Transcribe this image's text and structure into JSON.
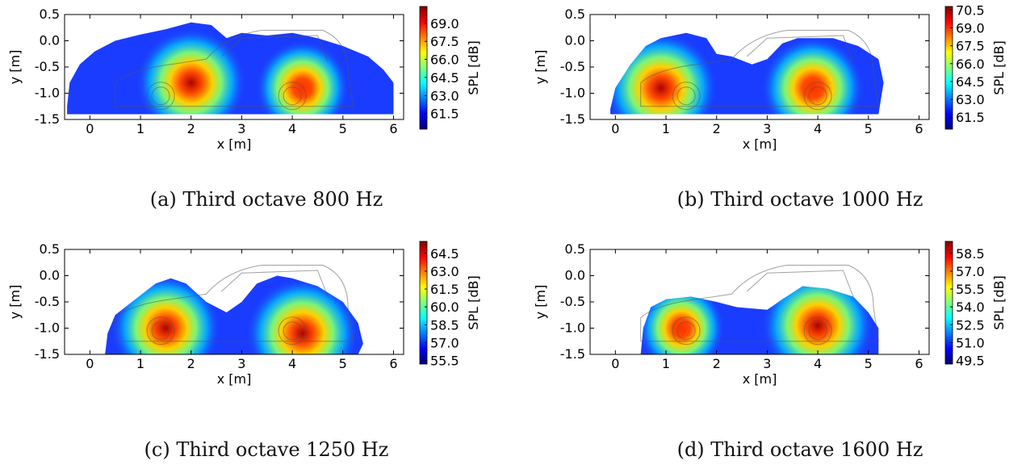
{
  "chart_data": [
    {
      "type": "heatmap",
      "caption": "(a)  Third octave 800 Hz",
      "xlabel": "x [m]",
      "ylabel": "y [m]",
      "colorbar_label": "SPL [dB]",
      "xlim": [
        -0.5,
        6.2
      ],
      "ylim": [
        -1.5,
        0.5
      ],
      "xticks": [
        "0",
        "1",
        "2",
        "3",
        "4",
        "5",
        "6"
      ],
      "yticks": [
        "0.5",
        "0.0",
        "-0.5",
        "-1.0",
        "-1.5"
      ],
      "colorbar_ticks": [
        "69.0",
        "67.5",
        "66.0",
        "64.5",
        "63.0",
        "61.5"
      ],
      "colorbar_range": [
        60.2,
        70.4
      ],
      "hotspots": [
        {
          "x": 2.0,
          "y": -0.8,
          "level": 69.5
        },
        {
          "x": 4.2,
          "y": -0.9,
          "level": 66.5
        }
      ],
      "colormap": [
        "#00007f",
        "#0000ff",
        "#007fff",
        "#00ffff",
        "#7fff7f",
        "#ffff00",
        "#ff7f00",
        "#ff0000",
        "#7f0000"
      ]
    },
    {
      "type": "heatmap",
      "caption": "(b)  Third octave 1000 Hz",
      "xlabel": "x [m]",
      "ylabel": "y [m]",
      "colorbar_label": "SPL [dB]",
      "xlim": [
        -0.5,
        6.2
      ],
      "ylim": [
        -1.5,
        0.5
      ],
      "xticks": [
        "0",
        "1",
        "2",
        "3",
        "4",
        "5",
        "6"
      ],
      "yticks": [
        "0.5",
        "0.0",
        "-0.5",
        "-1.0",
        "-1.5"
      ],
      "colorbar_ticks": [
        "70.5",
        "69.0",
        "67.5",
        "66.0",
        "64.5",
        "63.0",
        "61.5"
      ],
      "colorbar_range": [
        60.5,
        70.8
      ],
      "hotspots": [
        {
          "x": 0.9,
          "y": -0.9,
          "level": 70.5
        },
        {
          "x": 3.9,
          "y": -0.9,
          "level": 68.5
        }
      ],
      "colormap": [
        "#00007f",
        "#0000ff",
        "#007fff",
        "#00ffff",
        "#7fff7f",
        "#ffff00",
        "#ff7f00",
        "#ff0000",
        "#7f0000"
      ]
    },
    {
      "type": "heatmap",
      "caption": "(c)  Third octave 1250 Hz",
      "xlabel": "x [m]",
      "ylabel": "y [m]",
      "colorbar_label": "SPL [dB]",
      "xlim": [
        -0.5,
        6.2
      ],
      "ylim": [
        -1.5,
        0.5
      ],
      "xticks": [
        "0",
        "1",
        "2",
        "3",
        "4",
        "5",
        "6"
      ],
      "yticks": [
        "0.5",
        "0.0",
        "-0.5",
        "-1.0",
        "-1.5"
      ],
      "colorbar_ticks": [
        "64.5",
        "63.0",
        "61.5",
        "60.0",
        "58.5",
        "57.0",
        "55.5"
      ],
      "colorbar_range": [
        55.2,
        65.5
      ],
      "hotspots": [
        {
          "x": 1.5,
          "y": -1.0,
          "level": 64.5
        },
        {
          "x": 4.2,
          "y": -1.1,
          "level": 65.0
        }
      ],
      "colormap": [
        "#00007f",
        "#0000ff",
        "#007fff",
        "#00ffff",
        "#7fff7f",
        "#ffff00",
        "#ff7f00",
        "#ff0000",
        "#7f0000"
      ]
    },
    {
      "type": "heatmap",
      "caption": "(d)  Third octave 1600 Hz",
      "xlabel": "x [m]",
      "ylabel": "y [m]",
      "colorbar_label": "SPL [dB]",
      "xlim": [
        -0.5,
        6.2
      ],
      "ylim": [
        -1.5,
        0.5
      ],
      "xticks": [
        "0",
        "1",
        "2",
        "3",
        "4",
        "5",
        "6"
      ],
      "yticks": [
        "0.5",
        "0.0",
        "-0.5",
        "-1.0",
        "-1.5"
      ],
      "colorbar_ticks": [
        "58.5",
        "57.0",
        "55.5",
        "54.0",
        "52.5",
        "51.0",
        "49.5"
      ],
      "colorbar_range": [
        49.2,
        59.5
      ],
      "hotspots": [
        {
          "x": 1.3,
          "y": -1.0,
          "level": 54.5
        },
        {
          "x": 4.0,
          "y": -0.95,
          "level": 59.0
        }
      ],
      "colormap": [
        "#00007f",
        "#0000ff",
        "#007fff",
        "#00ffff",
        "#7fff7f",
        "#ffff00",
        "#ff7f00",
        "#ff0000",
        "#7f0000"
      ]
    }
  ]
}
